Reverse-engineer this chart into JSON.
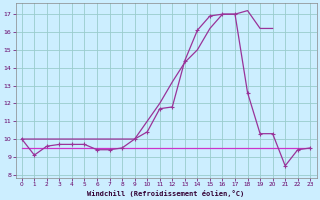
{
  "bg_color": "#cceeff",
  "grid_color": "#99cccc",
  "line_color1": "#993399",
  "line_color2": "#993399",
  "line_color3": "#cc33cc",
  "xlim": [
    -0.5,
    23.5
  ],
  "ylim": [
    7.8,
    17.6
  ],
  "yticks": [
    8,
    9,
    10,
    11,
    12,
    13,
    14,
    15,
    16,
    17
  ],
  "xticks": [
    0,
    1,
    2,
    3,
    4,
    5,
    6,
    7,
    8,
    9,
    10,
    11,
    12,
    13,
    14,
    15,
    16,
    17,
    18,
    19,
    20,
    21,
    22,
    23
  ],
  "xlabel": "Windchill (Refroidissement éolien,°C)",
  "series1_x": [
    0,
    1,
    2,
    3,
    4,
    5,
    6,
    7,
    8,
    9,
    10,
    11,
    12,
    13,
    14,
    15,
    16,
    17,
    18,
    19,
    20
  ],
  "series1_y": [
    10.0,
    10.0,
    10.0,
    10.0,
    10.0,
    10.0,
    10.0,
    10.0,
    10.0,
    10.0,
    11.0,
    12.0,
    13.2,
    14.3,
    15.0,
    16.2,
    17.0,
    17.0,
    17.2,
    16.2,
    16.2
  ],
  "series2_x": [
    0,
    1,
    2,
    3,
    4,
    5,
    6,
    7,
    8,
    9,
    10,
    11,
    12,
    13,
    14,
    15,
    16,
    17,
    18,
    19,
    20,
    21,
    22,
    23
  ],
  "series2_y": [
    10.0,
    9.1,
    9.6,
    9.7,
    9.7,
    9.7,
    9.4,
    9.4,
    9.5,
    10.0,
    10.4,
    11.7,
    11.8,
    14.4,
    16.1,
    16.9,
    17.0,
    17.0,
    12.6,
    10.3,
    10.3,
    8.5,
    9.4,
    9.5
  ],
  "series3_x": [
    0,
    1,
    2,
    3,
    4,
    5,
    6,
    7,
    8,
    9,
    10,
    11,
    12,
    13,
    14,
    15,
    16,
    17,
    18,
    19,
    20,
    21,
    22,
    23
  ],
  "series3_y": [
    9.5,
    9.5,
    9.5,
    9.5,
    9.5,
    9.5,
    9.5,
    9.5,
    9.5,
    9.5,
    9.5,
    9.5,
    9.5,
    9.5,
    9.5,
    9.5,
    9.5,
    9.5,
    9.5,
    9.5,
    9.5,
    9.5,
    9.5,
    9.5
  ]
}
